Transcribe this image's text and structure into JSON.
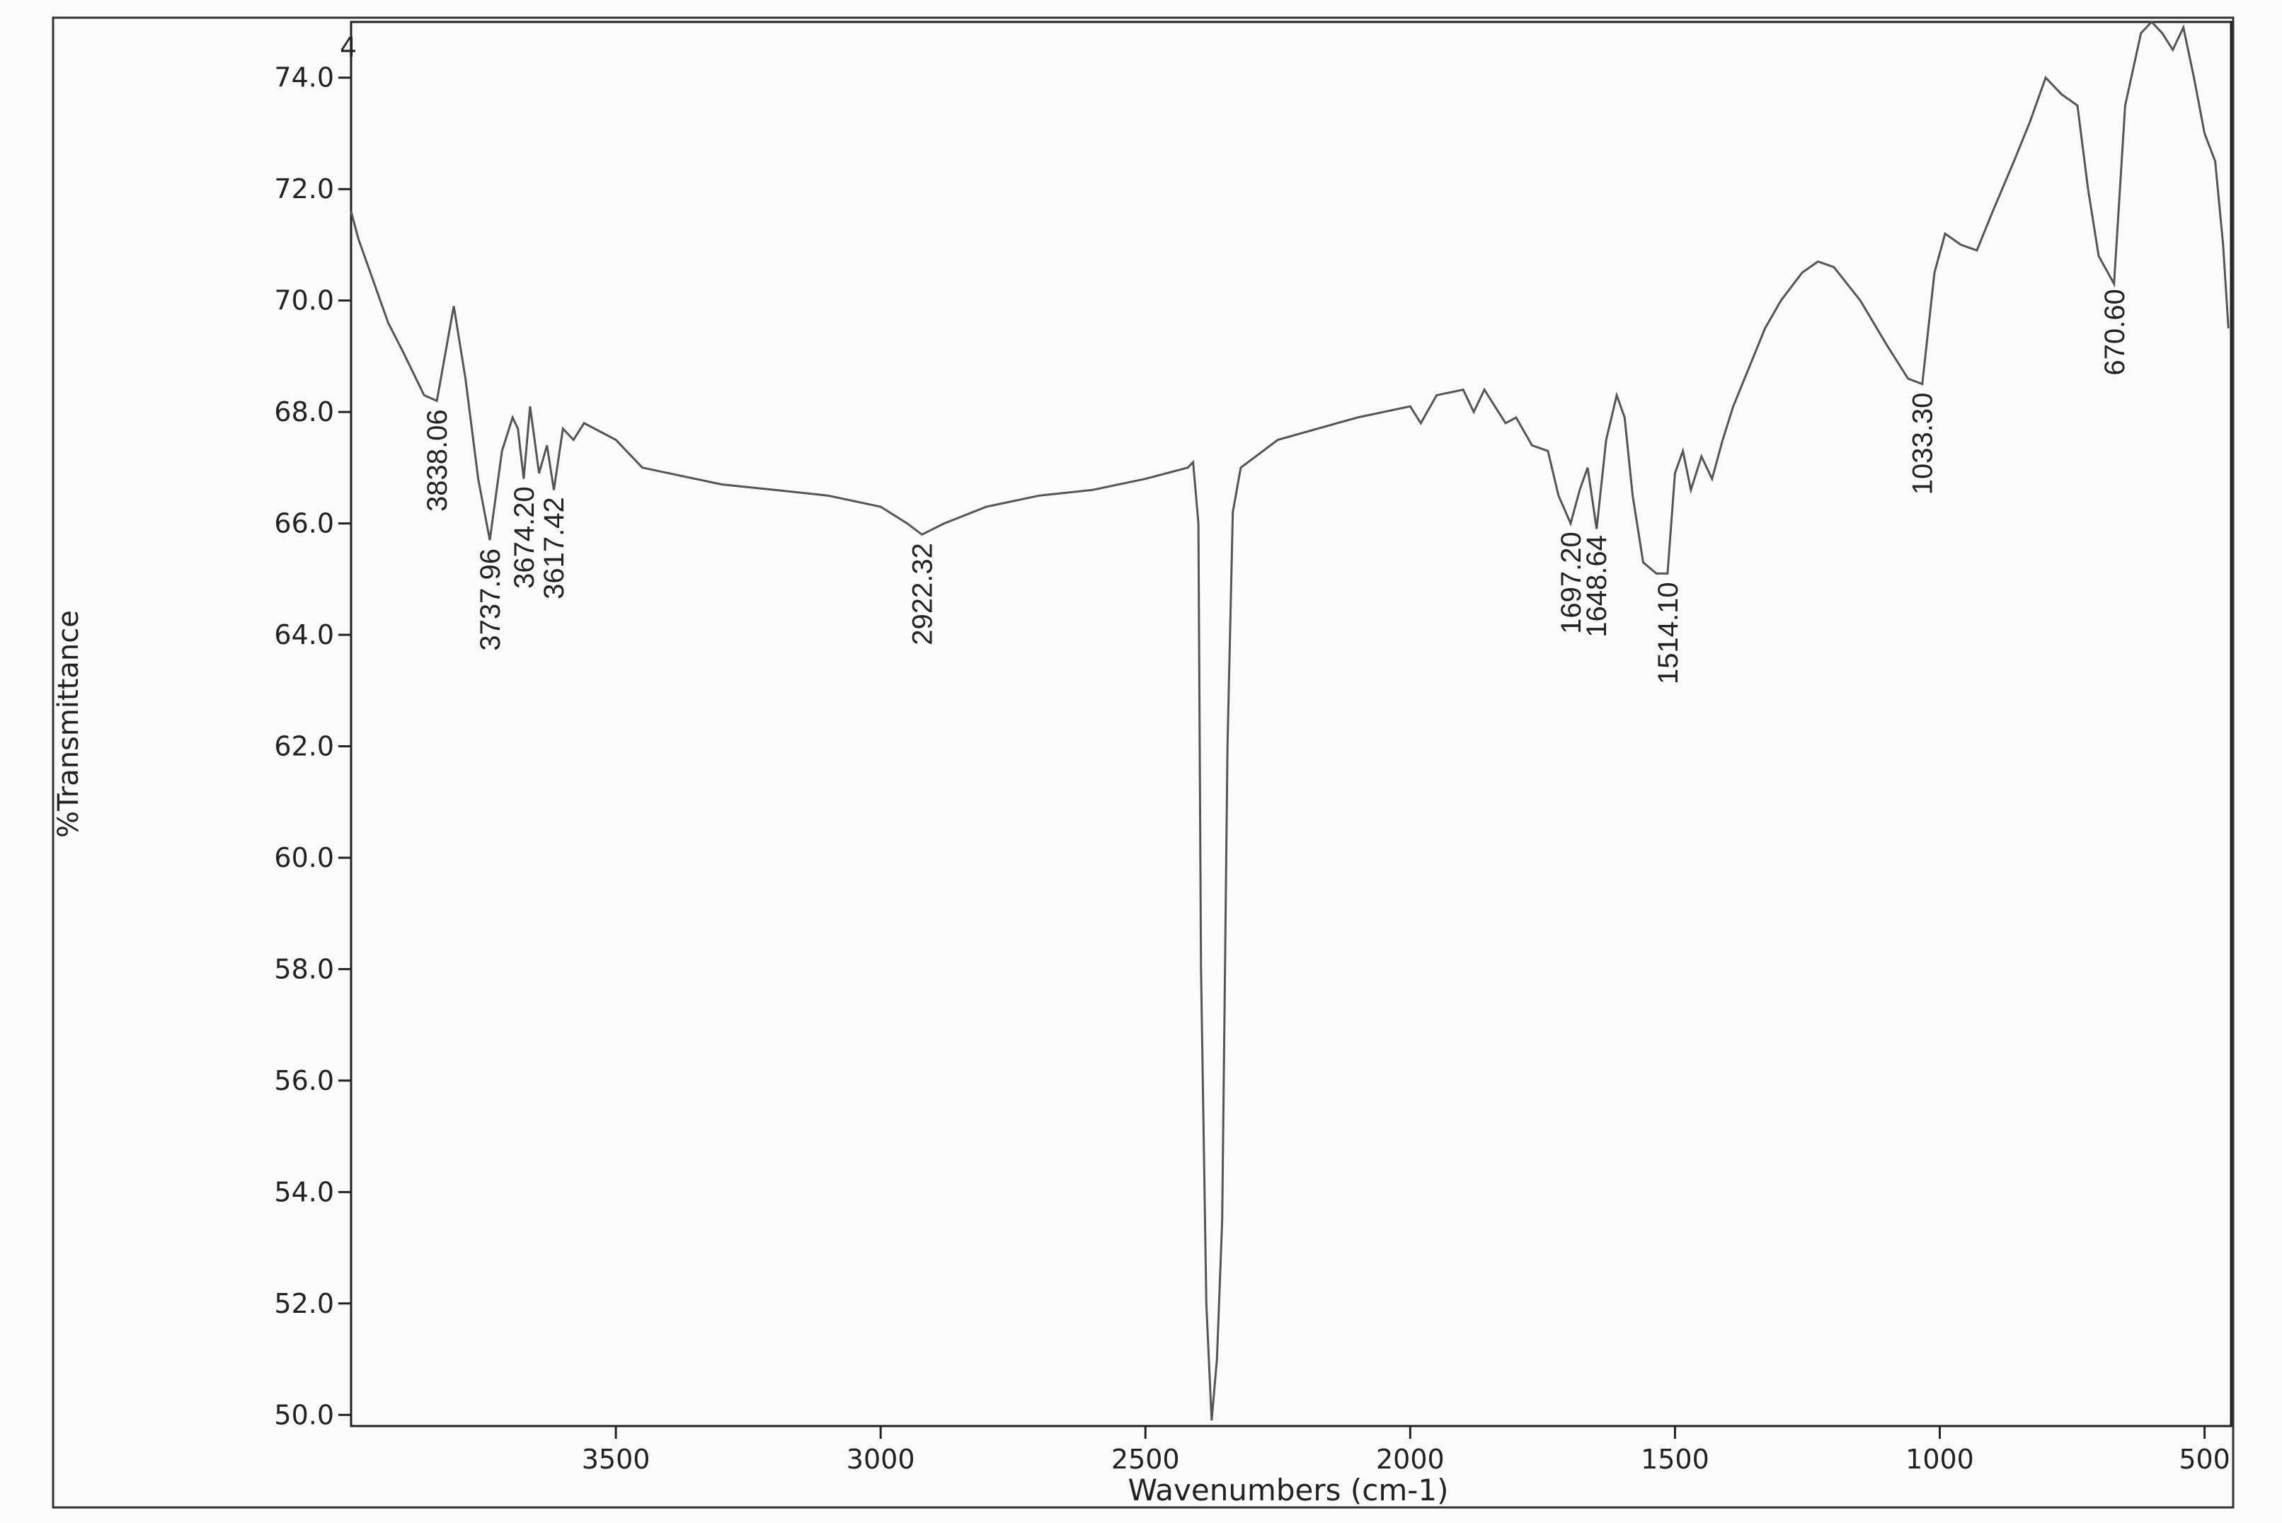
{
  "chart_data": {
    "type": "line",
    "ylabel": "%Transmittance",
    "xlabel": "Wavenumbers (cm-1)",
    "sample_label": "4",
    "color": "#555555",
    "grid": false,
    "xlim": [
      4000,
      450
    ],
    "ylim": [
      49.8,
      75.0
    ],
    "xticks": [
      3500,
      3000,
      2500,
      2000,
      1500,
      1000,
      500
    ],
    "yticks": [
      {
        "value": 50,
        "label": "50.0"
      },
      {
        "value": 52,
        "label": "52.0"
      },
      {
        "value": 54,
        "label": "54.0"
      },
      {
        "value": 56,
        "label": "56.0"
      },
      {
        "value": 58,
        "label": "58.0"
      },
      {
        "value": 60,
        "label": "60.0"
      },
      {
        "value": 62,
        "label": "62.0"
      },
      {
        "value": 64,
        "label": "64.0"
      },
      {
        "value": 66,
        "label": "66.0"
      },
      {
        "value": 68,
        "label": "68.0"
      },
      {
        "value": 70,
        "label": "70.0"
      },
      {
        "value": 72,
        "label": "72.0"
      },
      {
        "value": 74,
        "label": "74.0"
      }
    ],
    "x": [
      4000,
      3986,
      3930,
      3903,
      3862,
      3838,
      3806,
      3784,
      3760,
      3738,
      3715,
      3695,
      3685,
      3674,
      3662,
      3645,
      3630,
      3617,
      3600,
      3580,
      3560,
      3500,
      3450,
      3400,
      3300,
      3200,
      3100,
      3000,
      2950,
      2922,
      2880,
      2800,
      2700,
      2600,
      2500,
      2420,
      2410,
      2400,
      2395,
      2385,
      2375,
      2365,
      2355,
      2345,
      2335,
      2320,
      2250,
      2100,
      2000,
      1980,
      1950,
      1900,
      1880,
      1860,
      1820,
      1800,
      1770,
      1740,
      1720,
      1697,
      1680,
      1665,
      1648,
      1630,
      1610,
      1595,
      1580,
      1560,
      1535,
      1514,
      1500,
      1485,
      1470,
      1450,
      1430,
      1410,
      1390,
      1360,
      1330,
      1300,
      1260,
      1230,
      1200,
      1150,
      1100,
      1060,
      1033,
      1010,
      990,
      960,
      930,
      900,
      860,
      830,
      800,
      770,
      740,
      720,
      700,
      671,
      650,
      620,
      600,
      580,
      560,
      540,
      520,
      500,
      480,
      465,
      455
    ],
    "values": [
      71.6,
      71.1,
      69.6,
      69.1,
      68.3,
      68.2,
      69.9,
      68.6,
      66.8,
      65.7,
      67.3,
      67.9,
      67.7,
      66.8,
      68.1,
      66.9,
      67.4,
      66.6,
      67.7,
      67.5,
      67.8,
      67.5,
      67.0,
      66.9,
      66.7,
      66.6,
      66.5,
      66.3,
      66.0,
      65.8,
      66.0,
      66.3,
      66.5,
      66.6,
      66.8,
      67.0,
      67.1,
      66.0,
      58.0,
      52.0,
      49.9,
      51.0,
      53.5,
      62.0,
      66.2,
      67.0,
      67.5,
      67.9,
      68.1,
      67.8,
      68.3,
      68.4,
      68.0,
      68.4,
      67.8,
      67.9,
      67.4,
      67.3,
      66.5,
      66.0,
      66.6,
      67.0,
      65.9,
      67.5,
      68.3,
      67.9,
      66.5,
      65.3,
      65.1,
      65.1,
      66.9,
      67.3,
      66.6,
      67.2,
      66.8,
      67.5,
      68.1,
      68.8,
      69.5,
      70.0,
      70.5,
      70.7,
      70.6,
      70.0,
      69.2,
      68.6,
      68.5,
      70.5,
      71.2,
      71.0,
      70.9,
      71.6,
      72.5,
      73.2,
      74.0,
      73.7,
      73.5,
      72.0,
      70.8,
      70.3,
      73.5,
      74.8,
      75.0,
      74.8,
      74.5,
      74.9,
      74.0,
      73.0,
      72.5,
      71.0,
      69.5
    ],
    "annotations": [
      {
        "value": 3838.06,
        "label": "3838.06"
      },
      {
        "value": 3737.96,
        "label": "3737.96"
      },
      {
        "value": 3674.2,
        "label": "3674.20"
      },
      {
        "value": 3617.42,
        "label": "3617.42"
      },
      {
        "value": 2922.32,
        "label": "2922.32"
      },
      {
        "value": 1697.2,
        "label": "1697.20"
      },
      {
        "value": 1648.64,
        "label": "1648.64"
      },
      {
        "value": 1514.1,
        "label": "1514.10"
      },
      {
        "value": 1033.3,
        "label": "1033.30"
      },
      {
        "value": 670.6,
        "label": "670.60"
      }
    ]
  }
}
